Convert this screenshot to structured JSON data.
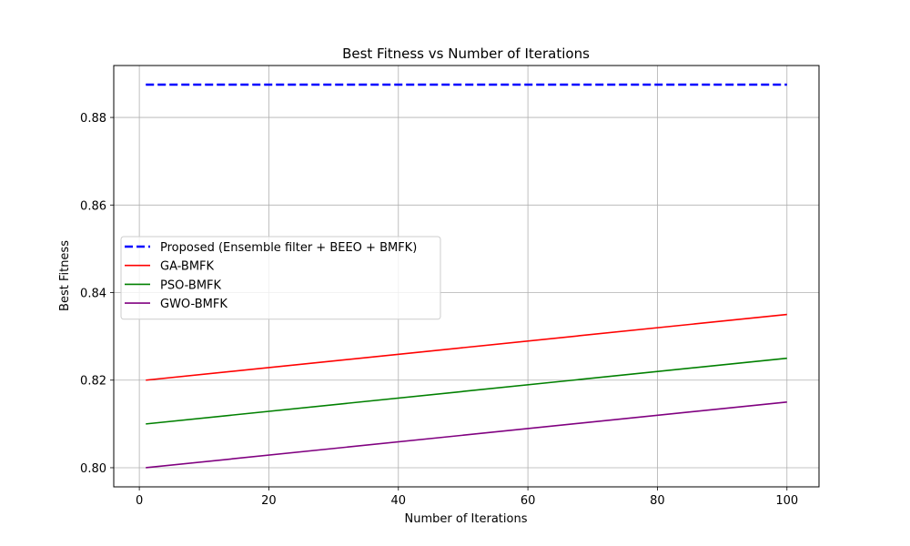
{
  "chart_data": {
    "type": "line",
    "title": "Best Fitness vs Number of Iterations",
    "xlabel": "Number of Iterations",
    "ylabel": "Best Fitness",
    "xlim": [
      -3.95,
      104.95
    ],
    "ylim": [
      0.79563,
      0.89186
    ],
    "xticks": [
      0,
      20,
      40,
      60,
      80,
      100
    ],
    "yticks": [
      0.8,
      0.82,
      0.84,
      0.86,
      0.88
    ],
    "ytick_labels": [
      "0.80",
      "0.82",
      "0.84",
      "0.86",
      "0.88"
    ],
    "grid": true,
    "legend_position": "center-left",
    "series": [
      {
        "name": "Proposed (Ensemble filter + BEEO + BMFK)",
        "color": "#0000ff",
        "style": "dashed",
        "x": [
          1,
          100
        ],
        "y": [
          0.8875,
          0.8875
        ]
      },
      {
        "name": "GA-BMFK",
        "color": "#ff0000",
        "style": "solid",
        "x": [
          1,
          100
        ],
        "y": [
          0.82,
          0.835
        ]
      },
      {
        "name": "PSO-BMFK",
        "color": "#008000",
        "style": "solid",
        "x": [
          1,
          100
        ],
        "y": [
          0.81,
          0.825
        ]
      },
      {
        "name": "GWO-BMFK",
        "color": "#800080",
        "style": "solid",
        "x": [
          1,
          100
        ],
        "y": [
          0.8,
          0.815
        ]
      }
    ]
  }
}
